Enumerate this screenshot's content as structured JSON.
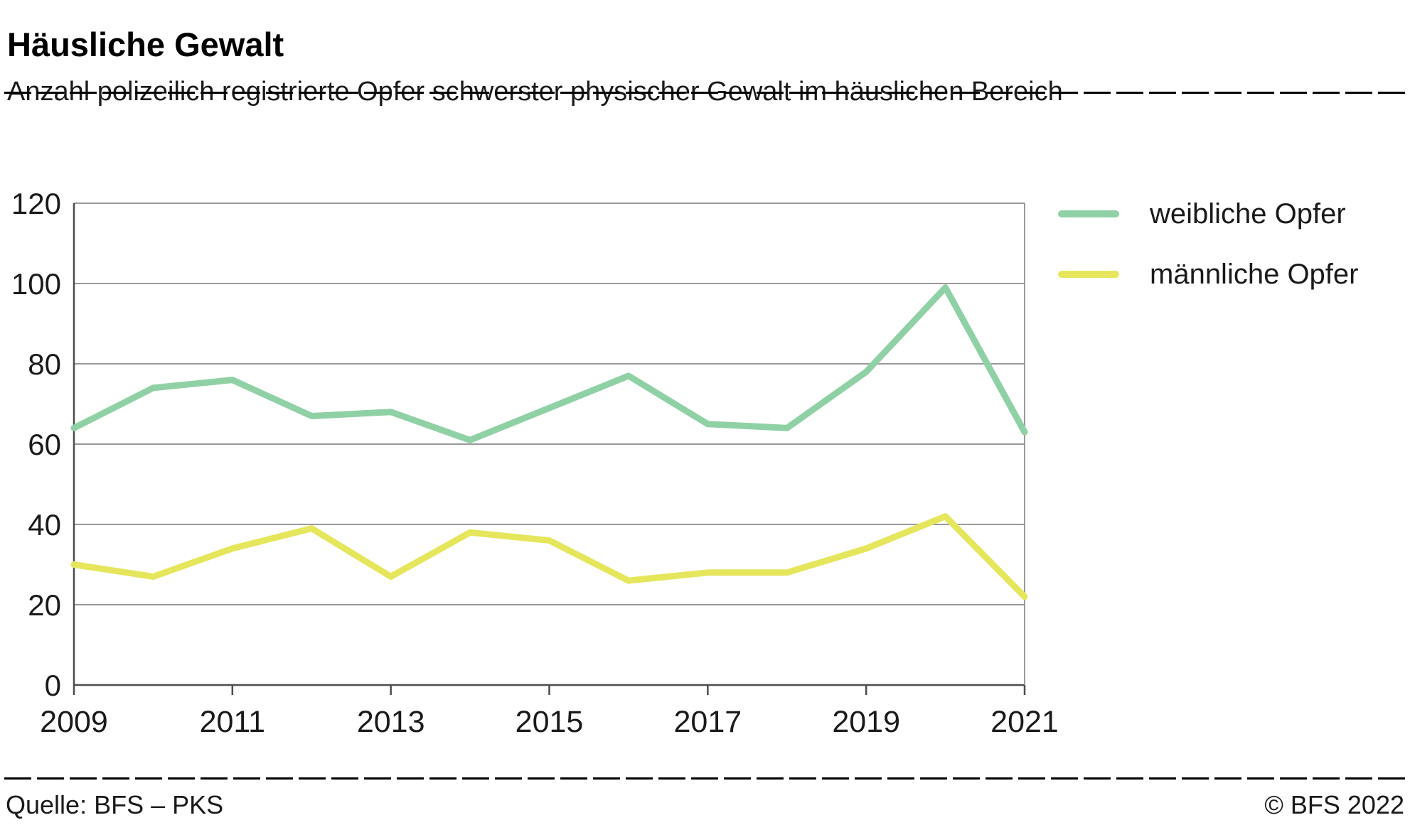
{
  "header": {
    "title": "Häusliche Gewalt",
    "subtitle": "Anzahl polizeilich registrierte Opfer schwerster physischer Gewalt im häuslichen Bereich"
  },
  "footer": {
    "source": "Quelle: BFS – PKS",
    "copyright": "© BFS 2022"
  },
  "colors": {
    "female_line": "#8fd1a5",
    "male_line": "#e5e65c",
    "gridline": "#999999",
    "axis": "#4d4d4d",
    "text": "#1a1a1a"
  },
  "chart_data": {
    "type": "line",
    "title": "Häusliche Gewalt",
    "subtitle": "Anzahl polizeilich registrierte Opfer schwerster physischer Gewalt im häuslichen Bereich",
    "x": [
      2009,
      2010,
      2011,
      2012,
      2013,
      2014,
      2015,
      2016,
      2017,
      2018,
      2019,
      2020,
      2021
    ],
    "series": [
      {
        "name": "weibliche Opfer",
        "color": "#8fd1a5",
        "values": [
          64,
          74,
          76,
          67,
          68,
          61,
          69,
          77,
          65,
          64,
          78,
          99,
          63
        ]
      },
      {
        "name": "männliche Opfer",
        "color": "#e5e65c",
        "values": [
          30,
          27,
          34,
          39,
          27,
          38,
          36,
          26,
          28,
          28,
          34,
          42,
          22
        ]
      }
    ],
    "xlabel": "",
    "ylabel": "",
    "ylim": [
      0,
      120
    ],
    "yticks": [
      0,
      20,
      40,
      60,
      80,
      100,
      120
    ],
    "xticks": [
      2009,
      2011,
      2013,
      2015,
      2017,
      2019,
      2021
    ],
    "grid": "horizontal",
    "legend_position": "top-right"
  }
}
